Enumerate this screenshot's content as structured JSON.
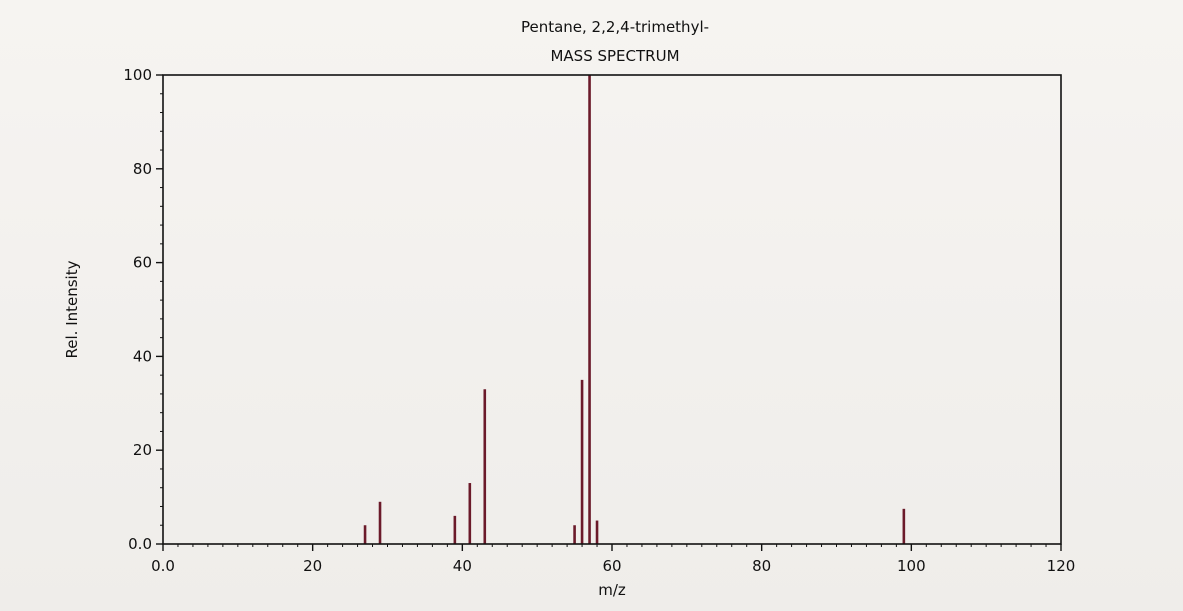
{
  "chart_data": {
    "type": "bar",
    "title": "Pentane, 2,2,4-trimethyl-",
    "subtitle": "MASS SPECTRUM",
    "xlabel": "m/z",
    "ylabel": "Rel. Intensity",
    "xlim": [
      0,
      120
    ],
    "ylim": [
      0,
      100
    ],
    "xticks": [
      0,
      20,
      40,
      60,
      80,
      100,
      120
    ],
    "xtick_labels": [
      "0.0",
      "20",
      "40",
      "60",
      "80",
      "100",
      "120"
    ],
    "yticks": [
      0,
      20,
      40,
      60,
      80,
      100
    ],
    "ytick_labels": [
      "0.0",
      "20",
      "40",
      "60",
      "80",
      "100"
    ],
    "grid": false,
    "bar_color": "#6b1a2a",
    "x": [
      27,
      29,
      39,
      41,
      43,
      55,
      56,
      57,
      58,
      99
    ],
    "values": [
      4,
      9,
      6,
      13,
      33,
      4,
      35,
      100,
      5,
      7.5
    ]
  }
}
